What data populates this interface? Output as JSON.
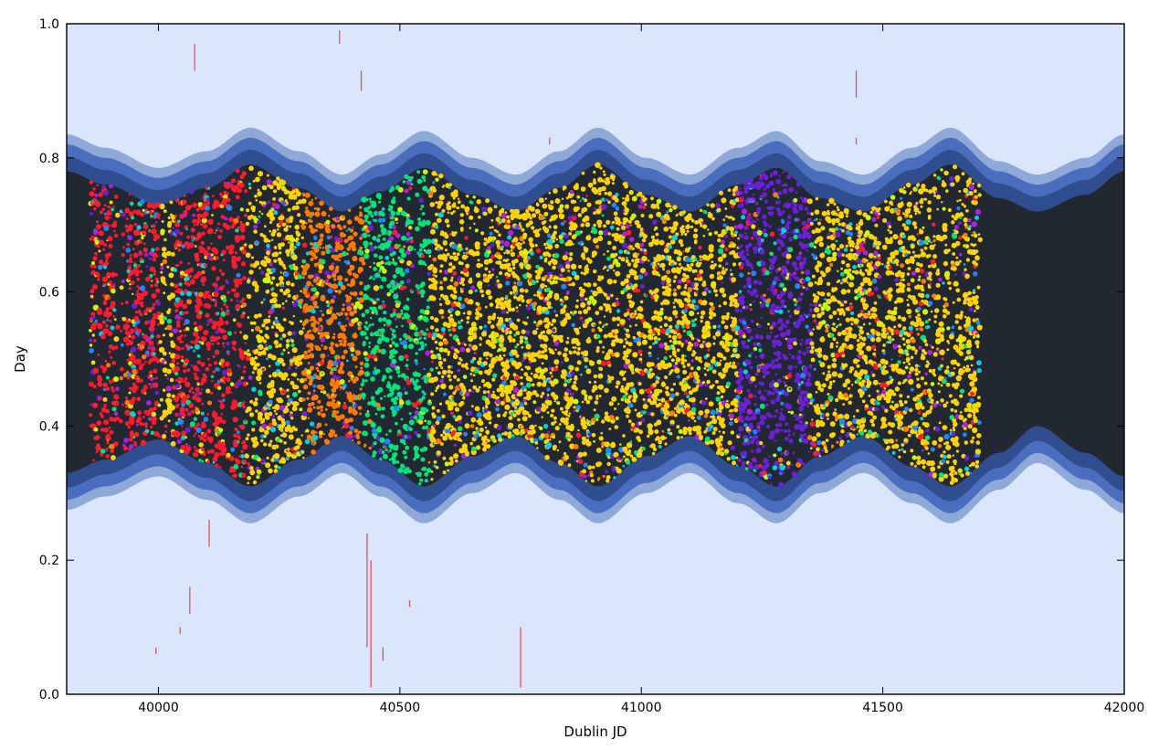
{
  "chart_data": {
    "type": "scatter",
    "title": "",
    "xlabel": "Dublin JD",
    "ylabel": "Day",
    "xlim": [
      39810,
      42000
    ],
    "ylim": [
      0.0,
      1.0
    ],
    "x_ticks": [
      40000,
      40500,
      41000,
      41500,
      42000
    ],
    "x_tick_labels": [
      "40000",
      "40500",
      "41000",
      "41500",
      "42000"
    ],
    "y_ticks": [
      0.0,
      0.2,
      0.4,
      0.6,
      0.8,
      1.0
    ],
    "y_tick_labels": [
      "0.0",
      "0.2",
      "0.4",
      "0.6",
      "0.8",
      "1.0"
    ],
    "grid": false,
    "legend": "none",
    "colors": {
      "background": "#d9e6fb",
      "night": "#222831",
      "twilight_astronomical": "#2f4d8f",
      "twilight_nautical": "#4a6ebd",
      "twilight_civil": "#8ea8d8",
      "observation_palette": [
        "#ff1a2e",
        "#ff7a00",
        "#ffd400",
        "#c8ff00",
        "#00e676",
        "#00d4e0",
        "#1e88ff",
        "#6a1fd8",
        "#b01ee8"
      ]
    },
    "night_band": {
      "description_units": "fraction of day",
      "x": [
        39810,
        39890,
        40000,
        40100,
        40190,
        40290,
        40380,
        40460,
        40550,
        40650,
        40740,
        40830,
        40910,
        41010,
        41100,
        41200,
        41280,
        41370,
        41460,
        41560,
        41640,
        41740,
        41820,
        41920,
        42000
      ],
      "dusk": [
        0.78,
        0.76,
        0.73,
        0.755,
        0.79,
        0.755,
        0.72,
        0.75,
        0.785,
        0.745,
        0.72,
        0.755,
        0.79,
        0.745,
        0.72,
        0.76,
        0.785,
        0.74,
        0.72,
        0.76,
        0.79,
        0.74,
        0.72,
        0.745,
        0.78
      ],
      "dawn": [
        0.33,
        0.35,
        0.38,
        0.345,
        0.31,
        0.35,
        0.385,
        0.35,
        0.31,
        0.355,
        0.385,
        0.345,
        0.31,
        0.355,
        0.385,
        0.34,
        0.31,
        0.355,
        0.385,
        0.34,
        0.31,
        0.36,
        0.4,
        0.36,
        0.325
      ]
    },
    "observations": {
      "x_range": [
        39860,
        41700
      ],
      "nights": [
        {
          "start": 39860,
          "end": 40000,
          "color": "#ff1a2e"
        },
        {
          "start": 39990,
          "end": 40030,
          "color": "#ffd400"
        },
        {
          "start": 40030,
          "end": 40180,
          "color": "#ff1a2e"
        },
        {
          "start": 40180,
          "end": 40300,
          "color": "#ffd400"
        },
        {
          "start": 40300,
          "end": 40420,
          "color": "#ff7a00"
        },
        {
          "start": 40420,
          "end": 40560,
          "color": "#00e676"
        },
        {
          "start": 40560,
          "end": 40720,
          "color": "#ffd400"
        },
        {
          "start": 40720,
          "end": 40900,
          "color": "#ffd400"
        },
        {
          "start": 40900,
          "end": 41020,
          "color": "#ffd400"
        },
        {
          "start": 41020,
          "end": 41200,
          "color": "#ffd400"
        },
        {
          "start": 41200,
          "end": 41350,
          "color": "#6a1fd8"
        },
        {
          "start": 41350,
          "end": 41500,
          "color": "#ffd400"
        },
        {
          "start": 41500,
          "end": 41700,
          "color": "#ffd400"
        }
      ],
      "daytime_markers": [
        {
          "x": 40075,
          "y0": 0.93,
          "y1": 0.97
        },
        {
          "x": 40375,
          "y0": 0.97,
          "y1": 0.99
        },
        {
          "x": 40420,
          "y0": 0.9,
          "y1": 0.93
        },
        {
          "x": 41445,
          "y0": 0.89,
          "y1": 0.93
        },
        {
          "x": 41445,
          "y0": 0.82,
          "y1": 0.83
        },
        {
          "x": 40810,
          "y0": 0.82,
          "y1": 0.83
        },
        {
          "x": 40440,
          "y0": 0.01,
          "y1": 0.2
        },
        {
          "x": 40432,
          "y0": 0.07,
          "y1": 0.24
        },
        {
          "x": 40105,
          "y0": 0.22,
          "y1": 0.26
        },
        {
          "x": 40065,
          "y0": 0.12,
          "y1": 0.16
        },
        {
          "x": 40465,
          "y0": 0.05,
          "y1": 0.07
        },
        {
          "x": 40520,
          "y0": 0.13,
          "y1": 0.14
        },
        {
          "x": 39995,
          "y0": 0.06,
          "y1": 0.07
        },
        {
          "x": 40045,
          "y0": 0.09,
          "y1": 0.1
        },
        {
          "x": 40750,
          "y0": 0.01,
          "y1": 0.1
        }
      ]
    }
  }
}
